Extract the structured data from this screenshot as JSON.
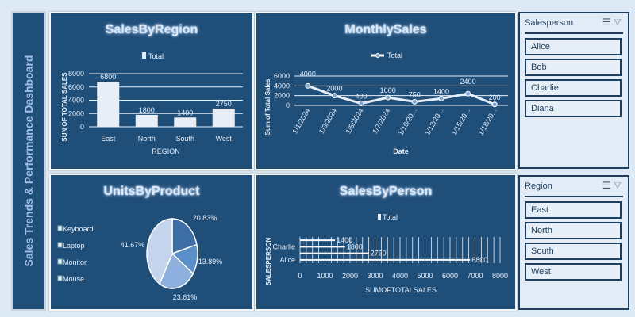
{
  "dashboard_title": "Sales Trends & Performance Dashboard",
  "slicers": [
    {
      "title": "Salesperson",
      "items": [
        "Alice",
        "Bob",
        "Charlie",
        "Diana"
      ]
    },
    {
      "title": "Region",
      "items": [
        "East",
        "North",
        "South",
        "West"
      ]
    }
  ],
  "icons": {
    "multi_select": "multi-select-icon",
    "clear_filter": "clear-filter-icon"
  },
  "colors": {
    "panel": "#1f4e79",
    "background": "#dde9f5",
    "slicer": "#e1ecf7"
  },
  "chart_data": [
    {
      "type": "bar",
      "title": "SalesByRegion",
      "legend": "Total",
      "legend_position": "top",
      "categories": [
        "East",
        "North",
        "South",
        "West"
      ],
      "values": [
        6800,
        1800,
        1400,
        2750
      ],
      "xlabel": "REGION",
      "ylabel": "SUN OF TOTAL SALES",
      "ylim": [
        0,
        8000
      ],
      "yticks": [
        0,
        2000,
        4000,
        6000,
        8000
      ],
      "grid": true
    },
    {
      "type": "line",
      "title": "MonthlySales",
      "legend": "Total",
      "legend_position": "top",
      "categories": [
        "1/1/2024",
        "1/3/2024",
        "1/5/2024",
        "1/7/2024",
        "1/10/20...",
        "1/12/20...",
        "1/15/20...",
        "1/18/20..."
      ],
      "values": [
        4000,
        2000,
        400,
        1600,
        750,
        1400,
        2400,
        200
      ],
      "xlabel": "Date",
      "ylabel": "Sum of Total Sales",
      "ylim": [
        0,
        6000
      ],
      "yticks": [
        0,
        2000,
        4000,
        6000
      ],
      "grid": true
    },
    {
      "type": "pie",
      "title": "UnitsByProduct",
      "legend_position": "left",
      "categories": [
        "Keyboard",
        "Laptop",
        "Monitor",
        "Mouse"
      ],
      "values": [
        20.83,
        13.89,
        23.61,
        41.67
      ],
      "labels": [
        "20.83%",
        "13.89%",
        "23.61%",
        "41.67%"
      ],
      "colors": [
        "#3d6ea6",
        "#5b8fcc",
        "#8db0de",
        "#c3d4ec"
      ]
    },
    {
      "type": "bar",
      "orientation": "horizontal",
      "title": "SalesByPerson",
      "legend": "Total",
      "legend_position": "top",
      "categories": [
        "Alice",
        "",
        "Charlie",
        ""
      ],
      "values": [
        6800,
        2750,
        1800,
        1400
      ],
      "xlabel": "SUMOFTOTALSALES",
      "ylabel": "SALESPERSON",
      "xlim": [
        0,
        8000
      ],
      "xticks": [
        0,
        1000,
        2000,
        3000,
        4000,
        5000,
        6000,
        7000,
        8000
      ],
      "grid": true
    }
  ]
}
